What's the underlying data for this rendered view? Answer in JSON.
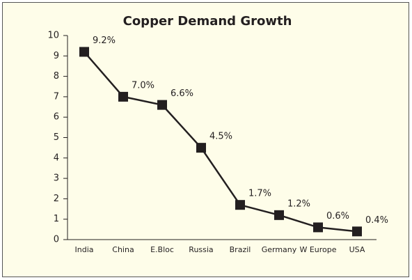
{
  "chart_data": {
    "type": "line",
    "title": "Copper Demand Growth",
    "categories": [
      "India",
      "China",
      "E.Bloc",
      "Russia",
      "Brazil",
      "Germany",
      "W Europe",
      "USA"
    ],
    "values": [
      9.2,
      7.0,
      6.6,
      4.5,
      1.7,
      1.2,
      0.6,
      0.4
    ],
    "value_labels": [
      "9.2%",
      "7.0%",
      "6.6%",
      "4.5%",
      "1.7%",
      "1.2%",
      "0.6%",
      "0.4%"
    ],
    "color": "#231f20",
    "ylim": [
      0,
      10
    ],
    "yticks": [
      0,
      1,
      2,
      3,
      4,
      5,
      6,
      7,
      8,
      9,
      10
    ],
    "grid": false
  }
}
